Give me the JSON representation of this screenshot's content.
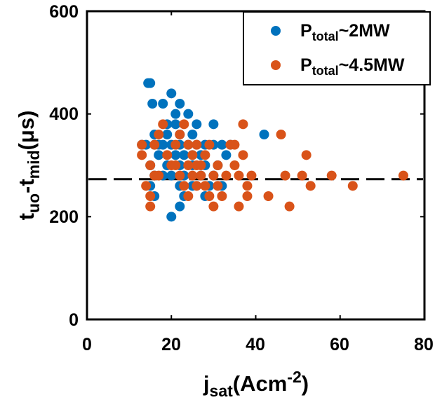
{
  "chart_data": {
    "type": "scatter",
    "xlabel": {
      "main": "j",
      "sub": "sat",
      "rest_pre": "(Acm",
      "sup": "-2",
      "rest_post": ")"
    },
    "ylabel": {
      "part1": "t",
      "sub1": "uo",
      "part2": "-t",
      "sub2": "mid",
      "part3": "(μs)"
    },
    "xlim": [
      0,
      80
    ],
    "ylim": [
      0,
      600
    ],
    "xticks": [
      "0",
      "20",
      "40",
      "60",
      "80"
    ],
    "yticks": [
      "0",
      "200",
      "400",
      "600"
    ],
    "grid": false,
    "legend_position": "top-right",
    "reference_line": {
      "style": "dashed",
      "y": 273
    },
    "series": [
      {
        "label_main": "P",
        "label_sub": "total",
        "label_rest": "~2MW",
        "color": "#0072BD",
        "points": [
          [
            14.5,
            460
          ],
          [
            15,
            460
          ],
          [
            15.5,
            420
          ],
          [
            20,
            440
          ],
          [
            18,
            420
          ],
          [
            22,
            420
          ],
          [
            24,
            400
          ],
          [
            21,
            400
          ],
          [
            19,
            380
          ],
          [
            26,
            380
          ],
          [
            13,
            340
          ],
          [
            14,
            340
          ],
          [
            16,
            340
          ],
          [
            17,
            340
          ],
          [
            18,
            340
          ],
          [
            20,
            340
          ],
          [
            22,
            340
          ],
          [
            24,
            340
          ],
          [
            26,
            340
          ],
          [
            28,
            340
          ],
          [
            30,
            340
          ],
          [
            32,
            340
          ],
          [
            34,
            340
          ],
          [
            16,
            360
          ],
          [
            19,
            360
          ],
          [
            22,
            360
          ],
          [
            25,
            360
          ],
          [
            42,
            360
          ],
          [
            30,
            380
          ],
          [
            21,
            380
          ],
          [
            17,
            320
          ],
          [
            21,
            320
          ],
          [
            23,
            320
          ],
          [
            25,
            320
          ],
          [
            27,
            320
          ],
          [
            33,
            320
          ],
          [
            15,
            300
          ],
          [
            19,
            300
          ],
          [
            22,
            300
          ],
          [
            25,
            300
          ],
          [
            28,
            300
          ],
          [
            31,
            300
          ],
          [
            16,
            280
          ],
          [
            18,
            280
          ],
          [
            20,
            280
          ],
          [
            23,
            280
          ],
          [
            27,
            280
          ],
          [
            30,
            280
          ],
          [
            15,
            260
          ],
          [
            22,
            260
          ],
          [
            25,
            260
          ],
          [
            29,
            260
          ],
          [
            32,
            260
          ],
          [
            16,
            240
          ],
          [
            23,
            240
          ],
          [
            28,
            240
          ],
          [
            22,
            220
          ],
          [
            20,
            200
          ]
        ]
      },
      {
        "label_main": "P",
        "label_sub": "total",
        "label_rest": "~4.5MW",
        "color": "#D95319",
        "points": [
          [
            13,
            340
          ],
          [
            13,
            320
          ],
          [
            15,
            300
          ],
          [
            16,
            280
          ],
          [
            17,
            280
          ],
          [
            14,
            260
          ],
          [
            15,
            240
          ],
          [
            15,
            220
          ],
          [
            16,
            340
          ],
          [
            17,
            360
          ],
          [
            18,
            380
          ],
          [
            19,
            320
          ],
          [
            20,
            300
          ],
          [
            21,
            340
          ],
          [
            22,
            360
          ],
          [
            23,
            380
          ],
          [
            24,
            340
          ],
          [
            25,
            320
          ],
          [
            26,
            300
          ],
          [
            27,
            280
          ],
          [
            28,
            260
          ],
          [
            29,
            240
          ],
          [
            30,
            220
          ],
          [
            22,
            280
          ],
          [
            23,
            260
          ],
          [
            24,
            240
          ],
          [
            25,
            280
          ],
          [
            26,
            260
          ],
          [
            27,
            300
          ],
          [
            28,
            320
          ],
          [
            29,
            340
          ],
          [
            30,
            280
          ],
          [
            31,
            260
          ],
          [
            32,
            240
          ],
          [
            34,
            340
          ],
          [
            35,
            300
          ],
          [
            36,
            280
          ],
          [
            36,
            220
          ],
          [
            37,
            380
          ],
          [
            37,
            320
          ],
          [
            38,
            260
          ],
          [
            38,
            240
          ],
          [
            39,
            280
          ],
          [
            43,
            240
          ],
          [
            46,
            360
          ],
          [
            47,
            280
          ],
          [
            48,
            220
          ],
          [
            51,
            280
          ],
          [
            52,
            320
          ],
          [
            53,
            260
          ],
          [
            58,
            280
          ],
          [
            63,
            260
          ],
          [
            75,
            280
          ],
          [
            21,
            300
          ],
          [
            24,
            300
          ],
          [
            26,
            340
          ],
          [
            31,
            300
          ],
          [
            33,
            280
          ],
          [
            35,
            340
          ]
        ]
      }
    ]
  }
}
